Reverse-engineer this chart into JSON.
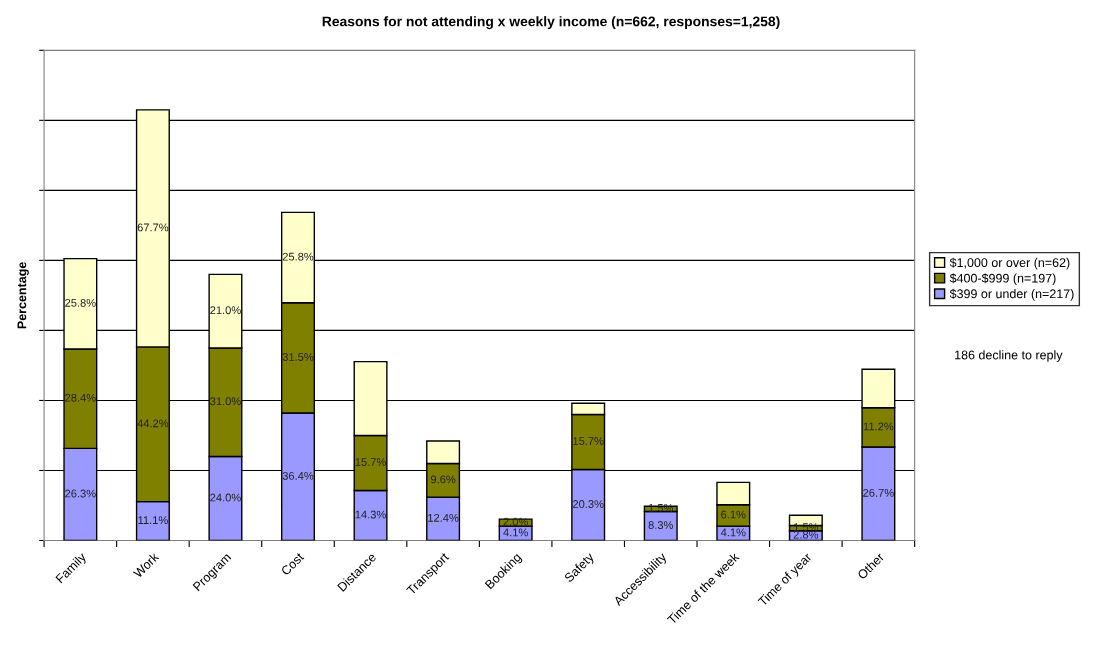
{
  "chart_data": {
    "type": "bar",
    "stacked": true,
    "title": "Reasons for not attending x weekly income (n=662, responses=1,258)",
    "ylabel": "Percentage",
    "categories": [
      "Family",
      "Work",
      "Program",
      "Cost",
      "Distance",
      "Transport",
      "Booking",
      "Safety",
      "Accessibility",
      "Time of the week",
      "Time of year",
      "Other"
    ],
    "series": [
      {
        "name": "$399 or under (n=217)",
        "color": "#9999ff",
        "values": [
          26.3,
          11.1,
          24.0,
          36.4,
          14.3,
          12.4,
          4.1,
          20.3,
          8.3,
          4.1,
          2.8,
          26.7
        ],
        "value_labels": [
          "26.3%",
          "11.1%",
          "24.0%",
          "36.4%",
          "14.3%",
          "12.4%",
          "4.1%",
          "20.3%",
          "8.3%",
          "4.1%",
          "2.8%",
          "26.7%"
        ]
      },
      {
        "name": "$400-$999 (n=197)",
        "color": "#808000",
        "values": [
          28.4,
          44.2,
          31.0,
          31.5,
          15.7,
          9.6,
          2.0,
          15.7,
          1.5,
          6.1,
          1.5,
          11.2
        ],
        "value_labels": [
          "28.4%",
          "44.2%",
          "31.0%",
          "31.5%",
          "15.7%",
          "9.6%",
          "2.0%",
          "15.7%",
          "1.5%",
          "6.1%",
          "1.5%",
          "11.2%"
        ]
      },
      {
        "name": "$1,000 or over (n=62)",
        "color": "#ffffcc",
        "values": [
          25.8,
          67.7,
          21.0,
          25.8,
          21.1,
          6.4,
          null,
          3.2,
          null,
          6.4,
          2.9,
          11.0
        ],
        "value_labels": [
          "25.8%",
          "67.7%",
          "21.0%",
          "25.8%",
          null,
          null,
          null,
          null,
          null,
          null,
          null,
          null
        ]
      }
    ],
    "ylim": [
      0,
      140
    ],
    "yticks": [
      {
        "value": 0,
        "label": null
      },
      {
        "value": 20,
        "label": null
      },
      {
        "value": 40,
        "label": null
      },
      {
        "value": 60,
        "label": null
      },
      {
        "value": 80,
        "label": null
      },
      {
        "value": 100,
        "label": null
      },
      {
        "value": 120,
        "label": null
      },
      {
        "value": 140,
        "label": null
      }
    ],
    "grid": "y",
    "legend": "right",
    "annotations": [
      "186 decline to reply"
    ]
  }
}
